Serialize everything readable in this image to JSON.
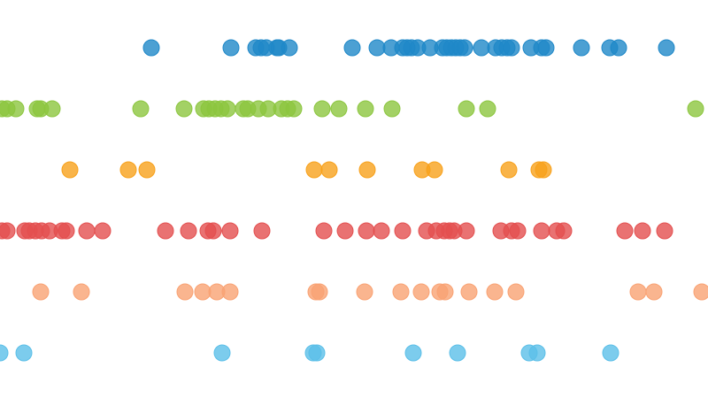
{
  "chart_data": {
    "type": "scatter",
    "subtype": "strip",
    "grid": false,
    "axes_visible": false,
    "xlim": [
      0,
      800
    ],
    "series": [
      {
        "color": "#1f88c8",
        "values": [
          171,
          261,
          289,
          295,
          301,
          313,
          315,
          327,
          398,
          426,
          442,
          455,
          460,
          465,
          472,
          486,
          500,
          505,
          510,
          515,
          520,
          525,
          544,
          560,
          567,
          573,
          578,
          600,
          612,
          617,
          657,
          689,
          699,
          753
        ]
      },
      {
        "color": "#8cc63f",
        "values": [
          2,
          8,
          18,
          42,
          46,
          59,
          159,
          208,
          230,
          236,
          243,
          250,
          257,
          275,
          280,
          292,
          303,
          318,
          325,
          332,
          364,
          383,
          413,
          443,
          527,
          551,
          786
        ]
      },
      {
        "color": "#f8a11b",
        "values": [
          79,
          145,
          166,
          355,
          372,
          415,
          477,
          491,
          575,
          609,
          614
        ]
      },
      {
        "color": "#e34f4f",
        "values": [
          2,
          8,
          28,
          33,
          40,
          47,
          56,
          70,
          75,
          98,
          116,
          187,
          213,
          235,
          241,
          260,
          296,
          366,
          390,
          414,
          431,
          455,
          482,
          493,
          502,
          508,
          513,
          527,
          566,
          578,
          585,
          612,
          629,
          637,
          706,
          726,
          751
        ]
      },
      {
        "color": "#f9a273",
        "values": [
          46,
          92,
          209,
          229,
          245,
          260,
          357,
          361,
          412,
          453,
          476,
          497,
          503,
          530,
          559,
          583,
          721,
          739,
          793
        ]
      },
      {
        "color": "#5bbfe8",
        "values": [
          0,
          27,
          251,
          354,
          358,
          467,
          517,
          598,
          607,
          690
        ]
      }
    ]
  }
}
